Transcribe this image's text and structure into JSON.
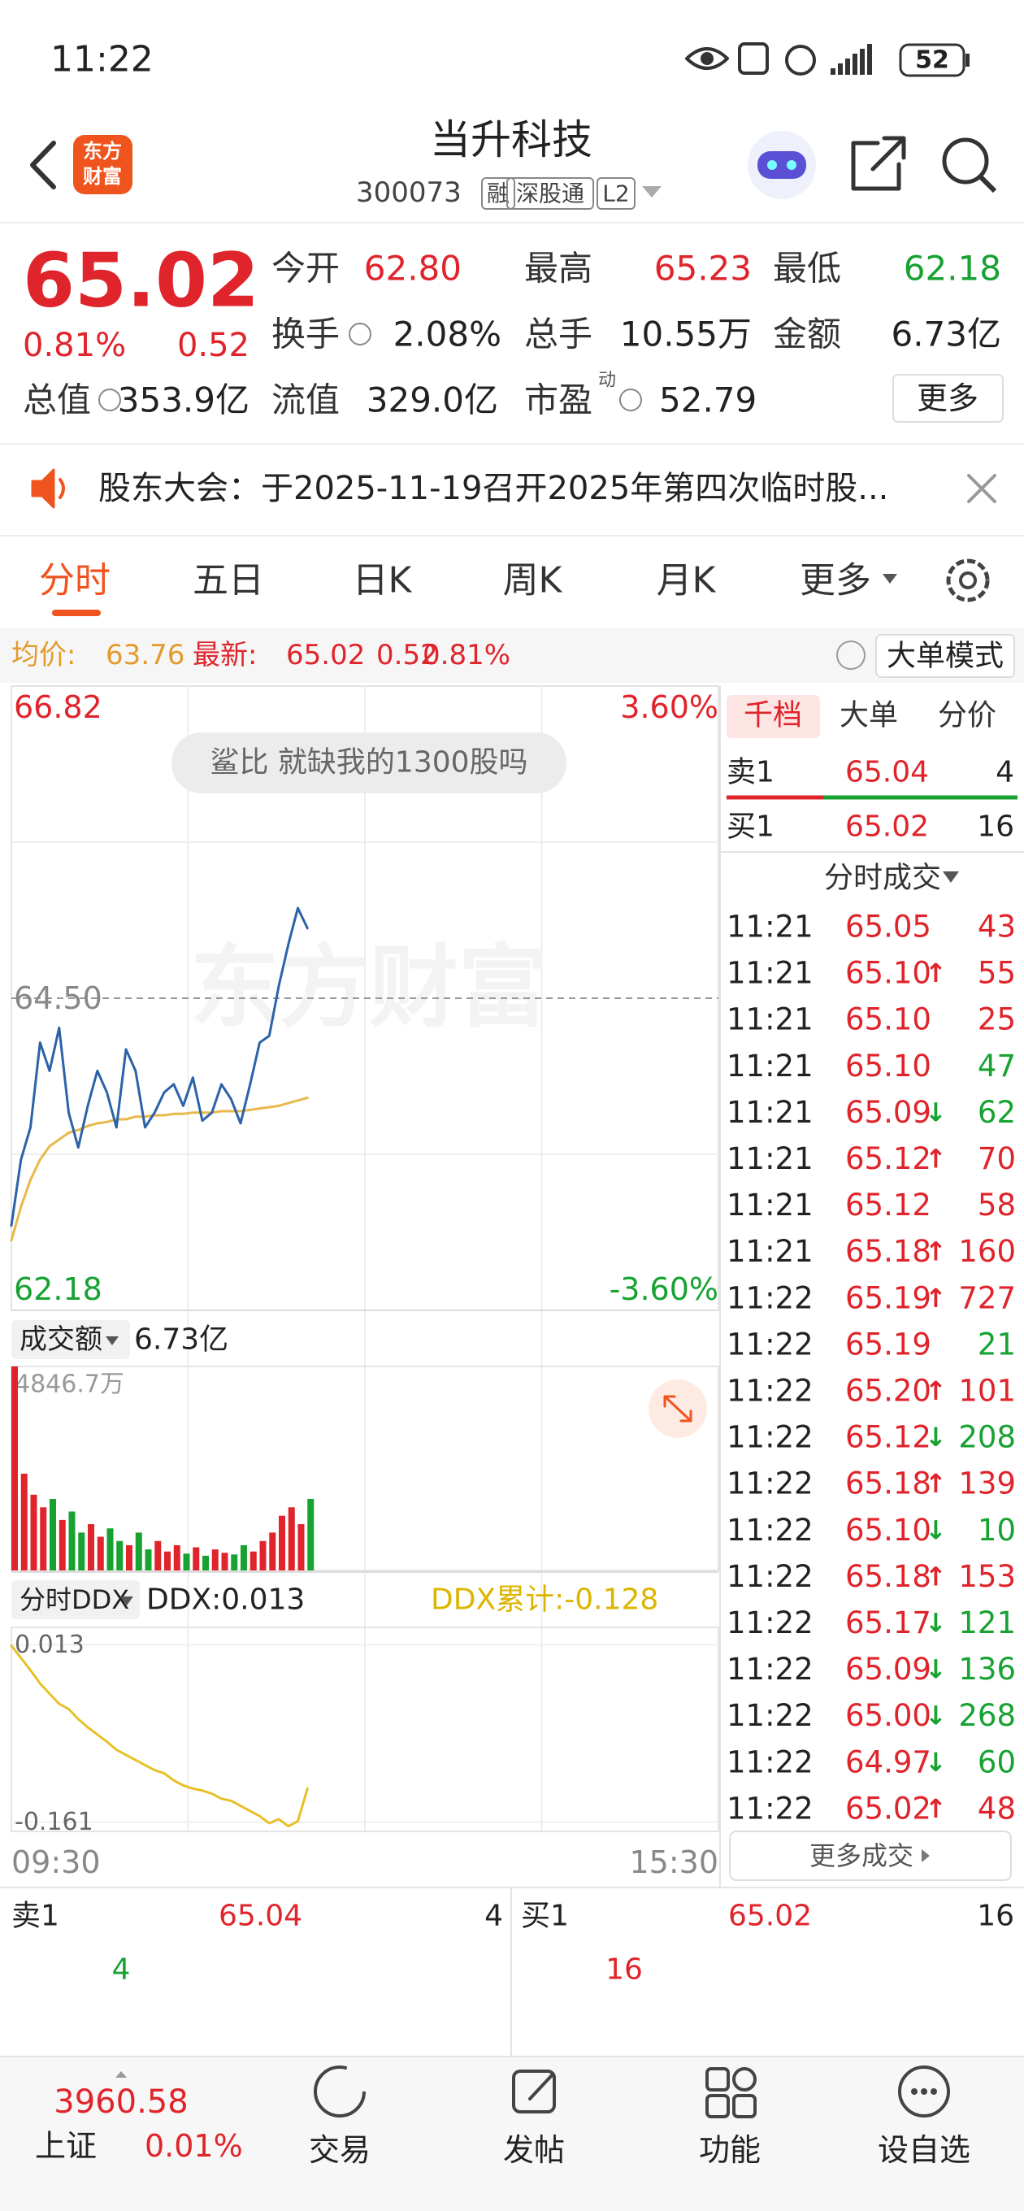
{
  "status_bar": {
    "time": "11:22",
    "battery": "52"
  },
  "header": {
    "logo": [
      "东方",
      "财富"
    ],
    "title": "当升科技",
    "code": "300073",
    "tags": [
      "融",
      "深股通",
      "L2"
    ]
  },
  "quote": {
    "price": "65.02",
    "change_pct": "0.81%",
    "change": "0.52",
    "pe_superscript": "动",
    "more": "更多",
    "fields": [
      {
        "label": "今开",
        "value": "62.80"
      },
      {
        "label": "最高",
        "value": "65.23"
      },
      {
        "label": "最低",
        "value": "62.18"
      },
      {
        "label": "换手",
        "value": "2.08%"
      },
      {
        "label": "总手",
        "value": "10.55万"
      },
      {
        "label": "金额",
        "value": "6.73亿"
      },
      {
        "label": "总值",
        "value": "353.9亿"
      },
      {
        "label": "流值",
        "value": "329.0亿"
      },
      {
        "label": "市盈",
        "value": "52.79"
      }
    ]
  },
  "notice": "股东大会：于2025-11-19召开2025年第四次临时股...",
  "tabs": [
    "分时",
    "五日",
    "日K",
    "周K",
    "月K",
    "更多"
  ],
  "info_row": {
    "avg_label": "均价:",
    "avg": "63.76",
    "latest_label": "最新:",
    "latest": "65.02",
    "change": "0.52",
    "change_pct": "0.81%",
    "mode": "大单模式"
  },
  "chart_data": [
    {
      "type": "line",
      "annotation": "鲨比 就缺我的1300股吗",
      "watermark": "东方财富",
      "ylim": [
        62.18,
        66.82
      ],
      "yticks": [
        66.82,
        {
          "value": 64.5,
          "label": "64.50"
        },
        62.18
      ],
      "pct_labels": [
        "3.60%",
        "-3.60%"
      ],
      "series": [
        {
          "color": "#2b62a8",
          "values": [
            62.81,
            63.3,
            63.54,
            64.17,
            63.96,
            64.28,
            63.65,
            63.39,
            63.7,
            63.96,
            63.8,
            63.54,
            64.12,
            63.96,
            63.54,
            63.65,
            63.8,
            63.86,
            63.7,
            63.91,
            63.59,
            63.65,
            63.86,
            63.75,
            63.57,
            63.86,
            64.17,
            64.22,
            64.59,
            64.9,
            65.17,
            65.02
          ]
        },
        {
          "color": "#e8b84a",
          "values": [
            62.7,
            62.95,
            63.15,
            63.3,
            63.4,
            63.45,
            63.5,
            63.52,
            63.55,
            63.57,
            63.58,
            63.6,
            63.6,
            63.62,
            63.62,
            63.63,
            63.63,
            63.64,
            63.64,
            63.65,
            63.65,
            63.65,
            63.66,
            63.66,
            63.66,
            63.67,
            63.68,
            63.69,
            63.7,
            63.72,
            63.74,
            63.76
          ]
        }
      ]
    },
    {
      "type": "bar",
      "title": "成交额",
      "total": "6.73亿",
      "ylim": [
        0,
        4846.7
      ],
      "yticks": [
        {
          "value": 4846.7,
          "label": "4846.7万"
        }
      ],
      "up_color": "#e0242b",
      "down_color": "#17a232",
      "values": [
        4846.7,
        2300,
        1800,
        1500,
        1700,
        1200,
        1400,
        900,
        1100,
        800,
        1000,
        700,
        600,
        900,
        500,
        700,
        450,
        600,
        400,
        550,
        350,
        500,
        420,
        380,
        600,
        450,
        700,
        900,
        1300,
        1500,
        1100,
        1700
      ]
    },
    {
      "type": "line",
      "title": "分时DDX",
      "ddx": "DDX:0.013",
      "ddx_cum": "DDX累计:-0.128",
      "ylim": [
        -0.17,
        0.03
      ],
      "yticks": [
        0.013,
        -0.161
      ],
      "color": "#e6c12a",
      "x_labels": [
        "09:30",
        "15:30"
      ],
      "values": [
        0.012,
        0.0,
        -0.012,
        -0.025,
        -0.035,
        -0.045,
        -0.05,
        -0.06,
        -0.068,
        -0.075,
        -0.082,
        -0.09,
        -0.095,
        -0.1,
        -0.105,
        -0.11,
        -0.113,
        -0.12,
        -0.125,
        -0.128,
        -0.13,
        -0.133,
        -0.138,
        -0.14,
        -0.145,
        -0.15,
        -0.155,
        -0.162,
        -0.158,
        -0.165,
        -0.16,
        -0.128
      ]
    }
  ],
  "order_book": {
    "tabs": [
      "千档",
      "大单",
      "分价"
    ],
    "sell": {
      "label": "卖1",
      "price": "65.04",
      "volume": "4"
    },
    "buy": {
      "label": "买1",
      "price": "65.02",
      "volume": "16"
    }
  },
  "trades": {
    "title": "分时成交",
    "more": "更多成交",
    "rows": [
      {
        "time": "11:21",
        "price": "65.05",
        "volume": "43",
        "volume_color": "#e0242b"
      },
      {
        "time": "11:21",
        "price": "65.10",
        "arrow": "↑",
        "arrow_color": "#e0242b",
        "volume": "55",
        "volume_color": "#e0242b"
      },
      {
        "time": "11:21",
        "price": "65.10",
        "volume": "25",
        "volume_color": "#e0242b"
      },
      {
        "time": "11:21",
        "price": "65.10",
        "volume": "47",
        "volume_color": "#17a232"
      },
      {
        "time": "11:21",
        "price": "65.09",
        "arrow": "↓",
        "arrow_color": "#17a232",
        "volume": "62",
        "volume_color": "#17a232"
      },
      {
        "time": "11:21",
        "price": "65.12",
        "arrow": "↑",
        "arrow_color": "#e0242b",
        "volume": "70",
        "volume_color": "#e0242b"
      },
      {
        "time": "11:21",
        "price": "65.12",
        "volume": "58",
        "volume_color": "#e0242b"
      },
      {
        "time": "11:21",
        "price": "65.18",
        "arrow": "↑",
        "arrow_color": "#e0242b",
        "volume": "160",
        "volume_color": "#e0242b"
      },
      {
        "time": "11:22",
        "price": "65.19",
        "arrow": "↑",
        "arrow_color": "#e0242b",
        "volume": "727",
        "volume_color": "#e0242b"
      },
      {
        "time": "11:22",
        "price": "65.19",
        "volume": "21",
        "volume_color": "#17a232"
      },
      {
        "time": "11:22",
        "price": "65.20",
        "arrow": "↑",
        "arrow_color": "#e0242b",
        "volume": "101",
        "volume_color": "#e0242b"
      },
      {
        "time": "11:22",
        "price": "65.12",
        "arrow": "↓",
        "arrow_color": "#17a232",
        "volume": "208",
        "volume_color": "#17a232"
      },
      {
        "time": "11:22",
        "price": "65.18",
        "arrow": "↑",
        "arrow_color": "#e0242b",
        "volume": "139",
        "volume_color": "#e0242b"
      },
      {
        "time": "11:22",
        "price": "65.10",
        "arrow": "↓",
        "arrow_color": "#17a232",
        "volume": "10",
        "volume_color": "#17a232"
      },
      {
        "time": "11:22",
        "price": "65.18",
        "arrow": "↑",
        "arrow_color": "#e0242b",
        "volume": "153",
        "volume_color": "#e0242b"
      },
      {
        "time": "11:22",
        "price": "65.17",
        "arrow": "↓",
        "arrow_color": "#17a232",
        "volume": "121",
        "volume_color": "#17a232"
      },
      {
        "time": "11:22",
        "price": "65.09",
        "arrow": "↓",
        "arrow_color": "#17a232",
        "volume": "136",
        "volume_color": "#17a232"
      },
      {
        "time": "11:22",
        "price": "65.00",
        "arrow": "↓",
        "arrow_color": "#17a232",
        "volume": "268",
        "volume_color": "#17a232"
      },
      {
        "time": "11:22",
        "price": "64.97",
        "arrow": "↓",
        "arrow_color": "#17a232",
        "volume": "60",
        "volume_color": "#17a232"
      },
      {
        "time": "11:22",
        "price": "65.02",
        "arrow": "↑",
        "arrow_color": "#e0242b",
        "volume": "48",
        "volume_color": "#e0242b"
      }
    ]
  },
  "bottom_book": {
    "sell": {
      "label": "卖1",
      "price": "65.04",
      "volume": "4"
    },
    "buy": {
      "label": "买1",
      "price": "65.02",
      "volume": "16"
    },
    "sell_queue": "4",
    "buy_queue": "16"
  },
  "nav": {
    "index_value": "3960.58",
    "index_name": "上证",
    "index_change": "0.01%",
    "items": [
      "交易",
      "发帖",
      "功能",
      "设自选"
    ]
  }
}
